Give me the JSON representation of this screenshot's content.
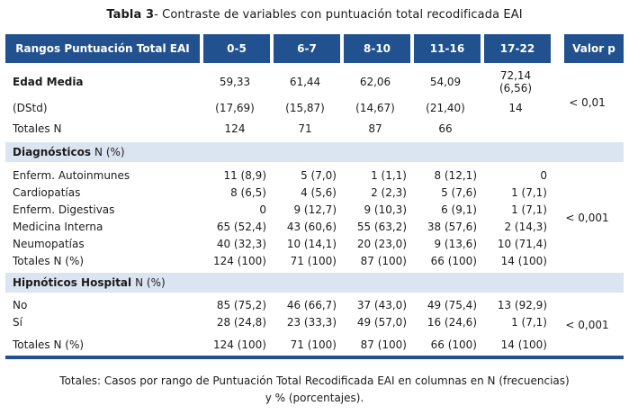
{
  "title": {
    "bold": "Tabla 3",
    "rest": "- Contraste de variables con puntuación total recodificada EAI"
  },
  "colors": {
    "header_bg": "#21518F",
    "band_bg": "#DBE5F1",
    "bottom_bar": "#21518F",
    "header_text": "#FFFFFF",
    "body_text": "#1B1B1B"
  },
  "table": {
    "header": {
      "label": "Rangos Puntuación Total EAI",
      "ranges": [
        "0-5",
        "6-7",
        "8-10",
        "11-16",
        "17-22"
      ],
      "pvalue_label": "Valor p"
    },
    "sections": [
      {
        "p": "< 0,01",
        "rows": [
          {
            "label": "Edad Media",
            "values": [
              "59,33",
              "61,44",
              "62,06",
              "54,09",
              "72,14\n(6,56)"
            ]
          },
          {
            "label": "(DStd)",
            "values": [
              "(17,69)",
              "(15,87)",
              "(14,67)",
              "(21,40)",
              "14"
            ]
          },
          {
            "label": "Totales N",
            "values": [
              "124",
              "71",
              "87",
              "66",
              ""
            ]
          }
        ]
      },
      {
        "band": {
          "bold": "Diagnósticos",
          "rest": "N  (%)"
        },
        "p": "< 0,001",
        "rows": [
          {
            "label": "Enferm. Autoinmunes",
            "values": [
              "11 (8,9)",
              "5 (7,0)",
              "1 (1,1)",
              "8 (12,1)",
              "0"
            ]
          },
          {
            "label": "Cardiopatías",
            "values": [
              "8 (6,5)",
              "4 (5,6)",
              "2 (2,3)",
              "5 (7,6)",
              "1 (7,1)"
            ]
          },
          {
            "label": "Enferm. Digestivas",
            "values": [
              "0",
              "9 (12,7)",
              "9 (10,3)",
              "6 (9,1)",
              "1 (7,1)"
            ]
          },
          {
            "label": "Medicina Interna",
            "values": [
              "65 (52,4)",
              "43 (60,6)",
              "55 (63,2)",
              "38 (57,6)",
              "2 (14,3)"
            ]
          },
          {
            "label": "Neumopatías",
            "values": [
              "40 (32,3)",
              "10 (14,1)",
              "20 (23,0)",
              "9 (13,6)",
              "10 (71,4)"
            ]
          },
          {
            "label": "Totales N (%)",
            "values": [
              "124 (100)",
              "71 (100)",
              "87 (100)",
              "66 (100)",
              "14 (100)"
            ]
          }
        ]
      },
      {
        "band": {
          "bold": "Hipnóticos Hospital",
          "rest": "N (%)"
        },
        "p": "< 0,001",
        "rows": [
          {
            "label": "No",
            "values": [
              "85 (75,2)",
              "46 (66,7)",
              "37 (43,0)",
              "49 (75,4)",
              "13 (92,9)"
            ]
          },
          {
            "label": "Sí",
            "values": [
              "28 (24,8)",
              "23 (33,3)",
              "49 (57,0)",
              "16 (24,6)",
              "1 (7,1)"
            ]
          },
          {
            "label": "Totales N (%)",
            "values": [
              "124 (100)",
              "71 (100)",
              "87 (100)",
              "66 (100)",
              "14 (100)"
            ]
          }
        ]
      }
    ]
  },
  "footer": {
    "line1": "Totales: Casos por rango de Puntuación Total Recodificada EAI en columnas en N (frecuencias)",
    "line2": "y % (porcentajes)."
  }
}
